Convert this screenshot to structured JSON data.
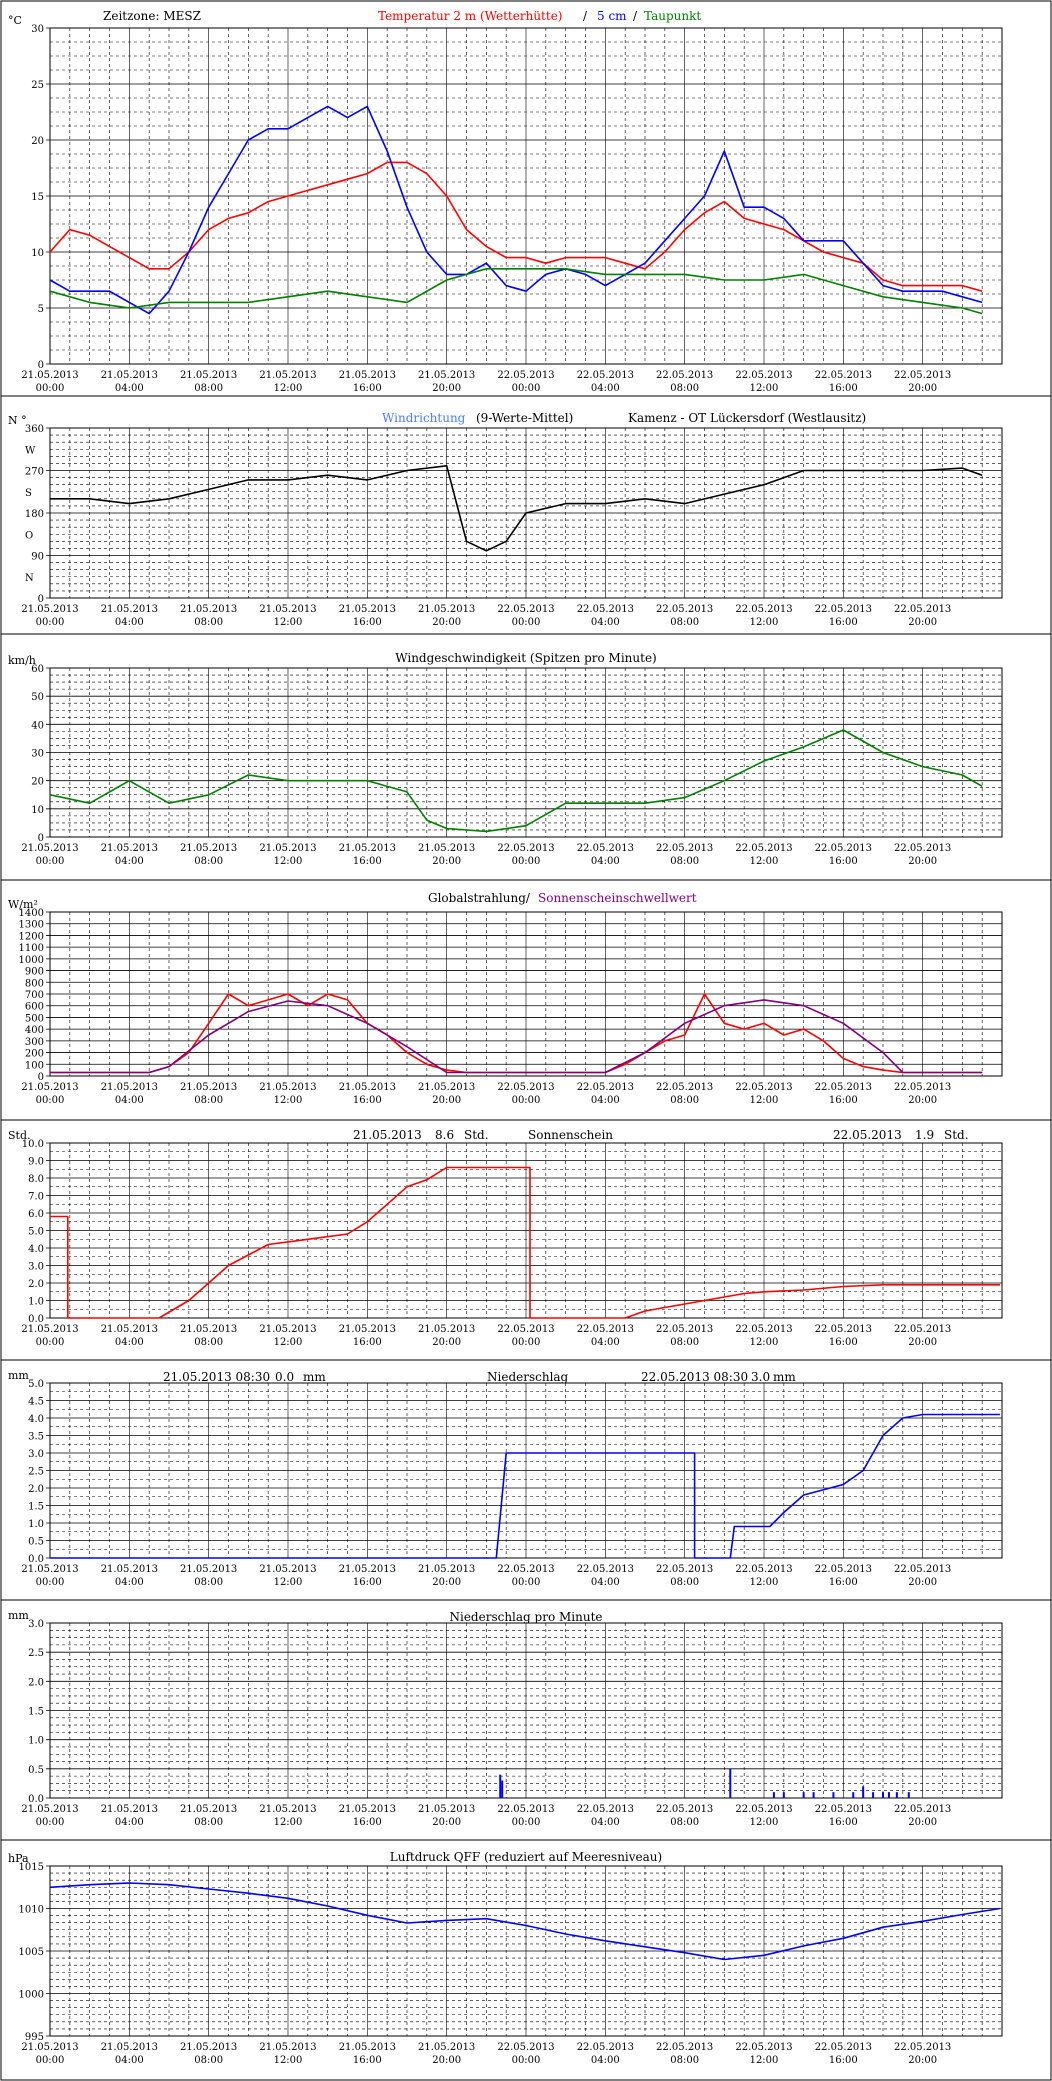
{
  "x_ticks": {
    "dates": [
      "21.05.2013",
      "21.05.2013",
      "21.05.2013",
      "21.05.2013",
      "21.05.2013",
      "21.05.2013",
      "22.05.2013",
      "22.05.2013",
      "22.05.2013",
      "22.05.2013",
      "22.05.2013",
      "22.05.2013"
    ],
    "times": [
      "00:00",
      "04:00",
      "08:00",
      "12:00",
      "16:00",
      "20:00",
      "00:00",
      "04:00",
      "08:00",
      "12:00",
      "16:00",
      "20:00"
    ]
  },
  "colors": {
    "red": "#ff0000",
    "blue": "#0000ff",
    "green": "#008000",
    "black": "#000000",
    "purple": "#800080",
    "lightblue": "#4d7dff"
  },
  "charts": [
    {
      "id": "temperature",
      "unit": "°C",
      "y_ticks": [
        "30",
        "25",
        "20",
        "15",
        "10",
        "5",
        "0"
      ],
      "titles": [
        {
          "text": "Zeitzone: MESZ",
          "color": "#000000"
        },
        {
          "text": "Temperatur 2 m (Wetterhütte)",
          "color": "#ff0000"
        },
        {
          "text": "/",
          "color": "#000000"
        },
        {
          "text": "5 cm",
          "color": "#0000ff"
        },
        {
          "text": "/",
          "color": "#000000"
        },
        {
          "text": "Taupunkt",
          "color": "#008000"
        }
      ]
    },
    {
      "id": "wind-direction",
      "unit": "N °",
      "y_ticks": [
        "360",
        "270",
        "180",
        "90",
        "0"
      ],
      "y_side_labels": [
        "W",
        "S",
        "O",
        "N"
      ],
      "titles": [
        {
          "text": "Windrichtung",
          "color": "#4d7dff"
        },
        {
          "text": "(9-Werte-Mittel)",
          "color": "#000000"
        },
        {
          "text": "Kamenz - OT Lückersdorf (Westlausitz)",
          "color": "#000000"
        }
      ]
    },
    {
      "id": "wind-speed",
      "unit": "km/h",
      "y_ticks": [
        "60",
        "50",
        "40",
        "30",
        "20",
        "10",
        "0"
      ],
      "titles": [
        {
          "text": "Windgeschwindigkeit (Spitzen pro Minute)",
          "color": "#000000"
        }
      ]
    },
    {
      "id": "radiation",
      "unit": "W/m²",
      "y_ticks": [
        "1400",
        "1300",
        "1200",
        "1100",
        "1000",
        "900",
        "800",
        "700",
        "600",
        "500",
        "400",
        "300",
        "200",
        "100",
        "0"
      ],
      "titles": [
        {
          "text": "Globalstrahlung/",
          "color": "#000000"
        },
        {
          "text": "Sonnenscheinschwellwert",
          "color": "#800080"
        }
      ]
    },
    {
      "id": "sunshine",
      "unit": "Std.",
      "y_ticks": [
        "10.0",
        "9.0",
        "8.0",
        "7.0",
        "6.0",
        "5.0",
        "4.0",
        "3.0",
        "2.0",
        "1.0",
        "0.0"
      ],
      "titles": [
        {
          "text": "21.05.2013",
          "color": "#000000"
        },
        {
          "text": "8.6",
          "color": "#000000"
        },
        {
          "text": "Std.",
          "color": "#000000"
        },
        {
          "text": "Sonnenschein",
          "color": "#000000"
        },
        {
          "text": "22.05.2013",
          "color": "#000000"
        },
        {
          "text": "1.9",
          "color": "#000000"
        },
        {
          "text": "Std.",
          "color": "#000000"
        }
      ]
    },
    {
      "id": "precipitation",
      "unit": "mm",
      "y_ticks": [
        "5.0",
        "4.5",
        "4.0",
        "3.5",
        "3.0",
        "2.5",
        "2.0",
        "1.5",
        "1.0",
        "0.5",
        "0.0"
      ],
      "titles": [
        {
          "text": "21.05.2013 08:30",
          "color": "#000000"
        },
        {
          "text": "0.0",
          "color": "#000000"
        },
        {
          "text": "mm",
          "color": "#000000"
        },
        {
          "text": "Niederschlag",
          "color": "#000000"
        },
        {
          "text": "22.05.2013 08:30",
          "color": "#000000"
        },
        {
          "text": "3.0",
          "color": "#000000"
        },
        {
          "text": "mm",
          "color": "#000000"
        }
      ]
    },
    {
      "id": "precipitation-minute",
      "unit": "mm",
      "y_ticks": [
        "3.0",
        "2.5",
        "2.0",
        "1.5",
        "1.0",
        "0.5",
        "0.0"
      ],
      "titles": [
        {
          "text": "Niederschlag pro Minute",
          "color": "#000000"
        }
      ]
    },
    {
      "id": "pressure",
      "unit": "hPa",
      "y_ticks": [
        "1015",
        "1010",
        "1005",
        "1000",
        "995"
      ],
      "titles": [
        {
          "text": "Luftdruck QFF (reduziert auf Meeresniveau)",
          "color": "#000000"
        }
      ]
    }
  ],
  "chart_data": [
    {
      "type": "line",
      "x_unit": "hours since 21.05.2013 00:00",
      "ylim": [
        0,
        30
      ],
      "series": [
        {
          "name": "Temperatur 2 m (Wetterhütte)",
          "color": "#ff0000",
          "x": [
            0,
            1,
            2,
            3,
            4,
            5,
            6,
            7,
            8,
            9,
            10,
            11,
            12,
            13,
            14,
            15,
            16,
            17,
            18,
            19,
            20,
            21,
            22,
            23,
            24,
            25,
            26,
            27,
            28,
            29,
            30,
            31,
            32,
            33,
            34,
            35,
            36,
            37,
            38,
            39,
            40,
            41,
            42,
            43,
            44,
            45,
            46,
            47
          ],
          "y": [
            10,
            12,
            11.5,
            10.5,
            9.5,
            8.5,
            8.5,
            10,
            12,
            13,
            13.5,
            14.5,
            15,
            15.5,
            16,
            16.5,
            17,
            18,
            18,
            17,
            15,
            12,
            10.5,
            9.5,
            9.5,
            9,
            9.5,
            9.5,
            9.5,
            9,
            8.5,
            10,
            12,
            13.5,
            14.5,
            13,
            12.5,
            12,
            11,
            10,
            9.5,
            9,
            7.5,
            7,
            7,
            7,
            7,
            6.5
          ]
        },
        {
          "name": "5 cm",
          "color": "#0000ff",
          "x": [
            0,
            1,
            2,
            3,
            4,
            5,
            6,
            7,
            8,
            9,
            10,
            11,
            12,
            13,
            14,
            15,
            16,
            17,
            18,
            19,
            20,
            21,
            22,
            23,
            24,
            25,
            26,
            27,
            28,
            29,
            30,
            31,
            32,
            33,
            34,
            35,
            36,
            37,
            38,
            39,
            40,
            41,
            42,
            43,
            44,
            45,
            46,
            47
          ],
          "y": [
            7.5,
            6.5,
            6.5,
            6.5,
            5.5,
            4.5,
            6.5,
            10,
            14,
            17,
            20,
            21,
            21,
            22,
            23,
            22,
            23,
            19,
            14,
            10,
            8,
            8,
            9,
            7,
            6.5,
            8,
            8.5,
            8,
            7,
            8,
            9,
            11,
            13,
            15,
            19,
            14,
            14,
            13,
            11,
            11,
            11,
            9,
            7,
            6.5,
            6.5,
            6.5,
            6,
            5.5
          ]
        },
        {
          "name": "Taupunkt",
          "color": "#008000",
          "x": [
            0,
            2,
            4,
            6,
            8,
            10,
            12,
            14,
            16,
            18,
            20,
            22,
            24,
            26,
            28,
            30,
            32,
            34,
            36,
            38,
            40,
            42,
            44,
            46,
            47
          ],
          "y": [
            6.5,
            5.5,
            5,
            5.5,
            5.5,
            5.5,
            6,
            6.5,
            6,
            5.5,
            7.5,
            8.5,
            8.5,
            8.5,
            8,
            8,
            8,
            7.5,
            7.5,
            8,
            7,
            6,
            5.5,
            5,
            4.5
          ]
        }
      ]
    },
    {
      "type": "line",
      "x_unit": "hours since 21.05.2013 00:00",
      "ylim": [
        0,
        360
      ],
      "series": [
        {
          "name": "Windrichtung",
          "color": "#000000",
          "x": [
            0,
            2,
            4,
            6,
            8,
            10,
            12,
            14,
            16,
            18,
            20,
            21,
            22,
            23,
            24,
            26,
            28,
            30,
            32,
            34,
            36,
            38,
            40,
            42,
            44,
            46,
            47
          ],
          "y": [
            210,
            210,
            200,
            210,
            230,
            250,
            250,
            260,
            250,
            270,
            280,
            120,
            100,
            120,
            180,
            200,
            200,
            210,
            200,
            220,
            240,
            270,
            270,
            270,
            270,
            275,
            260
          ]
        }
      ]
    },
    {
      "type": "line",
      "x_unit": "hours since 21.05.2013 00:00",
      "ylim": [
        0,
        60
      ],
      "series": [
        {
          "name": "Windgeschwindigkeit (Spitzen pro Minute)",
          "color": "#008000",
          "x": [
            0,
            2,
            4,
            6,
            8,
            10,
            12,
            14,
            16,
            18,
            19,
            20,
            22,
            24,
            26,
            28,
            30,
            32,
            34,
            36,
            38,
            40,
            42,
            44,
            46,
            47
          ],
          "y": [
            15,
            12,
            20,
            12,
            15,
            22,
            20,
            20,
            20,
            16,
            6,
            3,
            2,
            4,
            12,
            12,
            12,
            14,
            20,
            27,
            32,
            38,
            30,
            25,
            22,
            18
          ]
        }
      ]
    },
    {
      "type": "line",
      "x_unit": "hours since 21.05.2013 00:00",
      "ylim": [
        0,
        1400
      ],
      "series": [
        {
          "name": "Globalstrahlung",
          "color": "#ff0000",
          "x": [
            0,
            5,
            6,
            7,
            8,
            9,
            10,
            11,
            12,
            13,
            14,
            15,
            16,
            17,
            18,
            19,
            20,
            21,
            28,
            29,
            30,
            31,
            32,
            33,
            34,
            35,
            36,
            37,
            38,
            39,
            40,
            41,
            42,
            43,
            47
          ],
          "y": [
            30,
            30,
            80,
            200,
            450,
            700,
            600,
            650,
            700,
            600,
            700,
            650,
            450,
            350,
            200,
            100,
            50,
            30,
            30,
            100,
            200,
            300,
            350,
            700,
            450,
            400,
            450,
            350,
            400,
            300,
            150,
            80,
            50,
            30,
            30
          ]
        },
        {
          "name": "Sonnenscheinschwellwert",
          "color": "#800080",
          "x": [
            0,
            5,
            6,
            8,
            10,
            12,
            14,
            16,
            18,
            20,
            28,
            30,
            32,
            34,
            36,
            38,
            40,
            42,
            43,
            47
          ],
          "y": [
            30,
            30,
            80,
            350,
            550,
            640,
            600,
            450,
            250,
            30,
            30,
            200,
            450,
            600,
            650,
            600,
            450,
            200,
            30,
            30
          ]
        }
      ]
    },
    {
      "type": "line",
      "x_unit": "hours since 21.05.2013 00:00",
      "ylim": [
        0,
        10
      ],
      "series": [
        {
          "name": "Sonnenschein",
          "color": "#ff0000",
          "x": [
            0,
            0.9,
            0.9,
            5.5,
            7,
            8,
            9,
            10,
            11,
            13,
            15,
            16,
            17,
            18,
            19,
            20,
            24.2,
            24.2,
            29,
            30,
            31,
            32,
            33,
            34,
            35,
            36,
            38,
            40,
            42,
            44,
            46,
            47.9
          ],
          "y": [
            5.8,
            5.8,
            0,
            0,
            1,
            2,
            3,
            3.6,
            4.2,
            4.5,
            4.8,
            5.5,
            6.5,
            7.5,
            7.9,
            8.6,
            8.6,
            0,
            0,
            0.4,
            0.6,
            0.8,
            1,
            1.2,
            1.4,
            1.5,
            1.6,
            1.8,
            1.9,
            1.9,
            1.9,
            1.9
          ]
        }
      ]
    },
    {
      "type": "line",
      "x_unit": "hours since 21.05.2013 00:00",
      "ylim": [
        0,
        5
      ],
      "series": [
        {
          "name": "Niederschlag",
          "color": "#0000ff",
          "x": [
            0,
            22.5,
            23,
            32.5,
            32.5,
            34.3,
            34.5,
            36.3,
            37,
            38,
            40,
            41,
            42,
            43,
            44,
            45,
            46,
            47.9
          ],
          "y": [
            0,
            0,
            3,
            3,
            0,
            0,
            0.9,
            0.9,
            1.3,
            1.8,
            2.1,
            2.5,
            3.5,
            4.0,
            4.1,
            4.1,
            4.1,
            4.1
          ]
        }
      ]
    },
    {
      "type": "bar",
      "x_unit": "hours since 21.05.2013 00:00",
      "ylim": [
        0,
        3
      ],
      "series": [
        {
          "name": "Niederschlag pro Minute",
          "color": "#0000ff",
          "x": [
            22.7,
            22.8,
            34.3,
            36.5,
            37,
            38,
            38.5,
            39.5,
            40.5,
            41,
            41.5,
            42,
            42.3,
            42.7,
            43.3
          ],
          "y": [
            0.4,
            0.3,
            0.5,
            0.1,
            0.1,
            0.1,
            0.1,
            0.1,
            0.1,
            0.2,
            0.1,
            0.1,
            0.1,
            0.1,
            0.1
          ]
        }
      ]
    },
    {
      "type": "line",
      "x_unit": "hours since 21.05.2013 00:00",
      "ylim": [
        995,
        1015
      ],
      "series": [
        {
          "name": "Luftdruck QFF (reduziert auf Meeresniveau)",
          "color": "#0000ff",
          "x": [
            0,
            2,
            4,
            6,
            8,
            10,
            12,
            14,
            16,
            18,
            20,
            22,
            24,
            26,
            28,
            30,
            32,
            34,
            36,
            38,
            40,
            42,
            44,
            46,
            47.9
          ],
          "y": [
            1012.5,
            1012.8,
            1013,
            1012.8,
            1012.3,
            1011.8,
            1011.2,
            1010.3,
            1009.2,
            1008.3,
            1008.6,
            1008.8,
            1008,
            1007,
            1006.2,
            1005.5,
            1004.8,
            1004,
            1004.5,
            1005.6,
            1006.5,
            1007.8,
            1008.5,
            1009.3,
            1010
          ]
        }
      ]
    }
  ]
}
